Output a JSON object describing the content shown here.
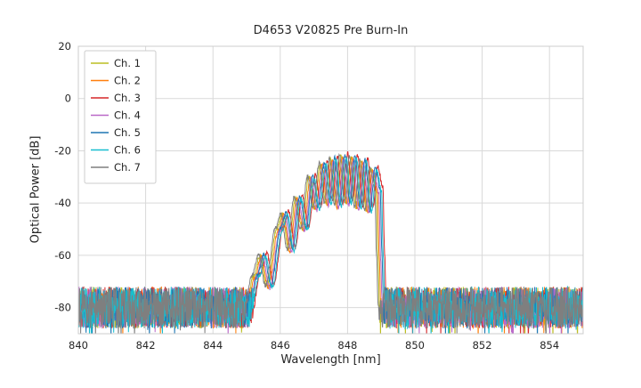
{
  "chart_data": {
    "type": "line",
    "title": "D4653 V20825 Pre Burn-In",
    "xlabel": "Wavelength [nm]",
    "ylabel": "Optical Power [dB]",
    "xlim": [
      840,
      855
    ],
    "ylim": [
      -90,
      20
    ],
    "xticks": [
      840,
      842,
      844,
      846,
      848,
      850,
      852,
      854
    ],
    "yticks": [
      20,
      0,
      -20,
      -40,
      -60,
      -80
    ],
    "grid": true,
    "legend_position": "upper-left",
    "grid_color": "#d9d9d9",
    "spine_color": "#cccccc",
    "noise": {
      "floor_db": -80,
      "spread_db": 8
    },
    "signal_envelope": [
      [
        845.05,
        -85
      ],
      [
        845.3,
        -68
      ],
      [
        845.5,
        -60
      ],
      [
        845.7,
        -72
      ],
      [
        846.0,
        -50
      ],
      [
        846.15,
        -44
      ],
      [
        846.35,
        -58
      ],
      [
        846.55,
        -38
      ],
      [
        846.75,
        -50
      ],
      [
        846.95,
        -30
      ],
      [
        847.1,
        -42
      ],
      [
        847.3,
        -25
      ],
      [
        847.45,
        -40
      ],
      [
        847.6,
        -23
      ],
      [
        847.75,
        -41
      ],
      [
        847.9,
        -22
      ],
      [
        848.05,
        -40
      ],
      [
        848.2,
        -22.5
      ],
      [
        848.35,
        -42
      ],
      [
        848.5,
        -24
      ],
      [
        848.65,
        -43
      ],
      [
        848.8,
        -27
      ],
      [
        848.95,
        -35
      ],
      [
        849.0,
        -60
      ],
      [
        849.05,
        -80
      ]
    ],
    "series": [
      {
        "name": "Ch. 1",
        "color": "#bcbd22",
        "x_offset": -0.1,
        "y_offset": 0.0,
        "seed": 1
      },
      {
        "name": "Ch. 2",
        "color": "#ff7f0e",
        "x_offset": -0.06,
        "y_offset": -0.5,
        "seed": 2
      },
      {
        "name": "Ch. 3",
        "color": "#d62728",
        "x_offset": 0.1,
        "y_offset": 1.0,
        "seed": 3
      },
      {
        "name": "Ch. 4",
        "color": "#ba68c8",
        "x_offset": -0.02,
        "y_offset": -0.8,
        "seed": 4
      },
      {
        "name": "Ch. 5",
        "color": "#1f77b4",
        "x_offset": 0.02,
        "y_offset": 0.5,
        "seed": 5
      },
      {
        "name": "Ch. 6",
        "color": "#17becf",
        "x_offset": 0.06,
        "y_offset": -0.3,
        "seed": 6
      },
      {
        "name": "Ch. 7",
        "color": "#7f7f7f",
        "x_offset": -0.14,
        "y_offset": 0.3,
        "seed": 7
      }
    ]
  }
}
